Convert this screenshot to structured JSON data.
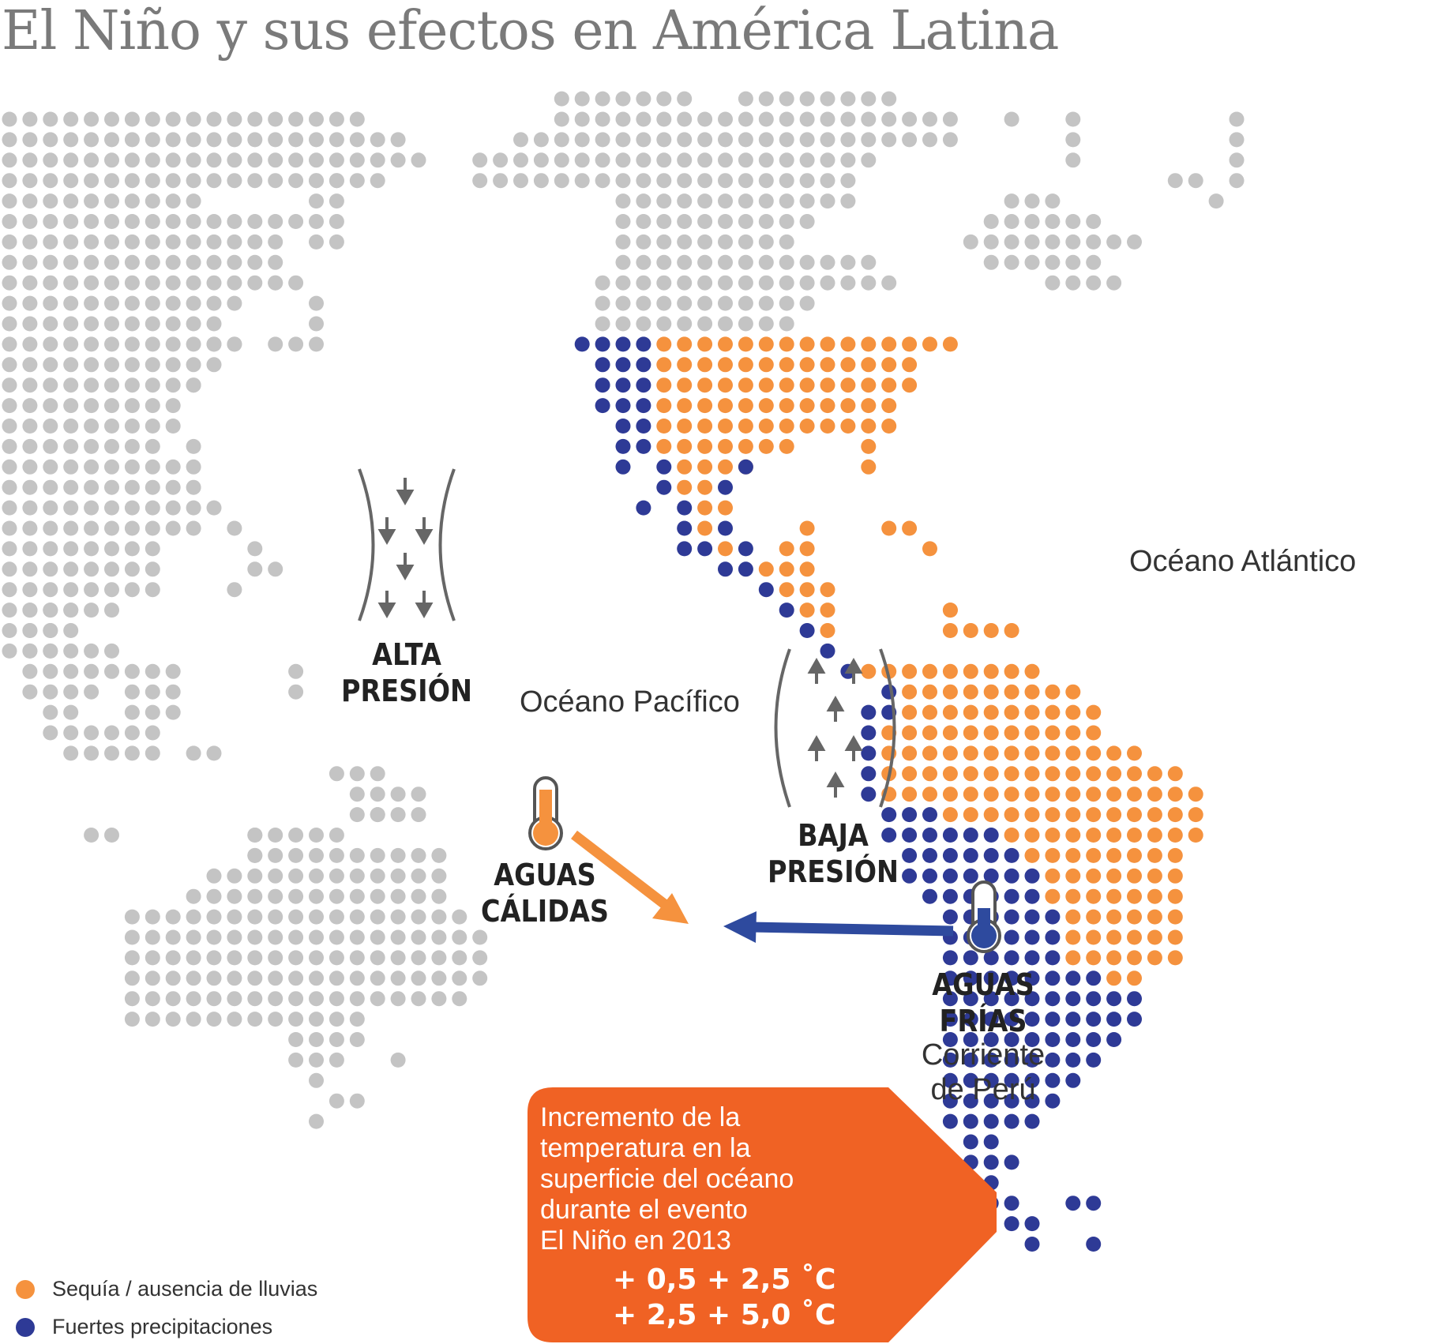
{
  "title": "El Niño y sus efectos en América Latina",
  "colors": {
    "land": "#c4c4c4",
    "drought": "#f5923e",
    "rain": "#2e3a96",
    "callout": "#f06224",
    "arrow_warm": "#f5923e",
    "arrow_cold": "#2e4a9e",
    "pressure_lines": "#666666"
  },
  "labels": {
    "ocean_pacific": "Océano Pacífico",
    "ocean_atlantic": "Océano Atlántico",
    "high_pressure_1": "ALTA",
    "high_pressure_2": "PRESIÓN",
    "low_pressure_1": "BAJA",
    "low_pressure_2": "PRESIÓN",
    "warm_waters_1": "AGUAS",
    "warm_waters_2": "CÁLIDAS",
    "cold_waters_1": "AGUAS",
    "cold_waters_2": "FRÍAS",
    "current_1": "Corriente",
    "current_2": "de Perú"
  },
  "callout": {
    "line1": "Incremento de la",
    "line2": "temperatura en la",
    "line3": "superficie del océano",
    "line4": "durante el evento",
    "line5": "El Niño en 2013",
    "value1": "+ 0,5 + 2,5 ˚C",
    "value2": "+ 2,5 + 5,0 ˚C"
  },
  "legend": [
    {
      "label": "Sequía / ausencia de lluvias",
      "color": "#f5923e",
      "icon": "orange-dot-icon"
    },
    {
      "label": "Fuertes precipitaciones",
      "color": "#2e3a96",
      "icon": "blue-dot-icon"
    }
  ]
}
